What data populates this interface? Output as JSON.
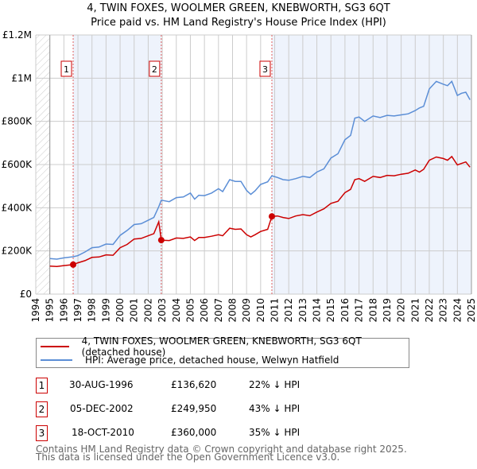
{
  "title_line1": "4, TWIN FOXES, WOOLMER GREEN, KNEBWORTH, SG3 6QT",
  "title_line2": "Price paid vs. HM Land Registry's House Price Index (HPI)",
  "colors": {
    "property": "#cc0000",
    "hpi": "#5b8ed6",
    "shade": "#eef3fc",
    "grid": "#cccccc"
  },
  "chart_data": {
    "type": "line",
    "title": "Price paid vs. HM Land Registry's House Price Index (HPI)",
    "xlim": [
      1994,
      2025
    ],
    "ylim": [
      0,
      1200000
    ],
    "x_ticks": [
      "1994",
      "1995",
      "1996",
      "1997",
      "1998",
      "1999",
      "2000",
      "2001",
      "2002",
      "2003",
      "2004",
      "2005",
      "2006",
      "2007",
      "2008",
      "2009",
      "2010",
      "2011",
      "2012",
      "2013",
      "2014",
      "2015",
      "2016",
      "2017",
      "2018",
      "2019",
      "2020",
      "2021",
      "2022",
      "2023",
      "2024",
      "2025"
    ],
    "y_ticks": [
      {
        "value": 0,
        "label": "£0"
      },
      {
        "value": 200000,
        "label": "£200K"
      },
      {
        "value": 400000,
        "label": "£400K"
      },
      {
        "value": 600000,
        "label": "£600K"
      },
      {
        "value": 800000,
        "label": "£800K"
      },
      {
        "value": 1000000,
        "label": "£1M"
      },
      {
        "value": 1200000,
        "label": "£1.2M"
      }
    ],
    "grid": true,
    "series": [
      {
        "name": "4, TWIN FOXES, WOOLMER GREEN, KNEBWORTH, SG3 6QT (detached house)",
        "color": "#cc0000",
        "x": [
          1995,
          1995.5,
          1996,
          1996.66,
          1997,
          1997.5,
          1998,
          1998.5,
          1999,
          1999.5,
          2000,
          2000.5,
          2001,
          2001.5,
          2002,
          2002.4,
          2002.75,
          2002.93,
          2003.5,
          2004,
          2004.5,
          2005,
          2005.3,
          2005.6,
          2006,
          2006.5,
          2007,
          2007.3,
          2007.8,
          2008.2,
          2008.6,
          2009,
          2009.3,
          2009.6,
          2010,
          2010.5,
          2010.8,
          2011.2,
          2011.6,
          2012,
          2012.5,
          2013,
          2013.5,
          2014,
          2014.5,
          2015,
          2015.5,
          2016,
          2016.4,
          2016.7,
          2017,
          2017.4,
          2018,
          2018.5,
          2019,
          2019.5,
          2020,
          2020.5,
          2021,
          2021.3,
          2021.6,
          2022,
          2022.5,
          2023,
          2023.3,
          2023.6,
          2024,
          2024.3,
          2024.6,
          2024.9
        ],
        "y": [
          130000,
          128000,
          132000,
          136620,
          145000,
          155000,
          170000,
          172000,
          182000,
          180000,
          215000,
          230000,
          255000,
          258000,
          270000,
          280000,
          335000,
          249950,
          248000,
          260000,
          258000,
          265000,
          248000,
          262000,
          262000,
          268000,
          275000,
          270000,
          305000,
          300000,
          302000,
          275000,
          265000,
          275000,
          290000,
          300000,
          360000,
          362000,
          355000,
          350000,
          362000,
          368000,
          363000,
          380000,
          395000,
          420000,
          430000,
          470000,
          485000,
          530000,
          535000,
          522000,
          545000,
          540000,
          550000,
          548000,
          555000,
          560000,
          575000,
          565000,
          578000,
          620000,
          635000,
          628000,
          620000,
          637000,
          598000,
          605000,
          612000,
          588000
        ]
      },
      {
        "name": "HPI: Average price, detached house, Welwyn Hatfield",
        "color": "#5b8ed6",
        "x": [
          1995,
          1995.5,
          1996,
          1996.66,
          1997,
          1997.5,
          1998,
          1998.5,
          1999,
          1999.5,
          2000,
          2000.5,
          2001,
          2001.5,
          2002,
          2002.4,
          2002.75,
          2002.93,
          2003.5,
          2004,
          2004.5,
          2005,
          2005.3,
          2005.6,
          2006,
          2006.5,
          2007,
          2007.3,
          2007.8,
          2008.2,
          2008.6,
          2009,
          2009.3,
          2009.6,
          2010,
          2010.5,
          2010.8,
          2011.2,
          2011.6,
          2012,
          2012.5,
          2013,
          2013.5,
          2014,
          2014.5,
          2015,
          2015.5,
          2016,
          2016.4,
          2016.7,
          2017,
          2017.4,
          2018,
          2018.5,
          2019,
          2019.5,
          2020,
          2020.5,
          2021,
          2021.3,
          2021.6,
          2022,
          2022.5,
          2023,
          2023.3,
          2023.6,
          2024,
          2024.3,
          2024.6,
          2024.9
        ],
        "y": [
          165000,
          162000,
          168000,
          173000,
          178000,
          195000,
          215000,
          218000,
          232000,
          230000,
          272000,
          295000,
          322000,
          326000,
          342000,
          355000,
          405000,
          435000,
          428000,
          447000,
          450000,
          468000,
          440000,
          458000,
          456000,
          468000,
          488000,
          475000,
          530000,
          522000,
          522000,
          480000,
          462000,
          478000,
          508000,
          520000,
          548000,
          540000,
          530000,
          527000,
          535000,
          545000,
          540000,
          565000,
          580000,
          630000,
          650000,
          715000,
          735000,
          815000,
          820000,
          800000,
          825000,
          818000,
          828000,
          825000,
          830000,
          835000,
          850000,
          862000,
          870000,
          950000,
          985000,
          972000,
          965000,
          985000,
          920000,
          930000,
          935000,
          900000
        ]
      }
    ],
    "sales": [
      {
        "id": "1",
        "x": 1996.66,
        "value": 136620
      },
      {
        "id": "2",
        "x": 2002.93,
        "value": 249950
      },
      {
        "id": "3",
        "x": 2010.8,
        "value": 360000
      }
    ],
    "legend_position": "below"
  },
  "legend": {
    "property": "4, TWIN FOXES, WOOLMER GREEN, KNEBWORTH, SG3 6QT (detached house)",
    "hpi": "HPI: Average price, detached house, Welwyn Hatfield"
  },
  "transactions": [
    {
      "id": "1",
      "date": "30-AUG-1996",
      "price": "£136,620",
      "hpi": "22% ↓ HPI"
    },
    {
      "id": "2",
      "date": "05-DEC-2002",
      "price": "£249,950",
      "hpi": "43% ↓ HPI"
    },
    {
      "id": "3",
      "date": "18-OCT-2010",
      "price": "£360,000",
      "hpi": "35% ↓ HPI"
    }
  ],
  "footer": {
    "line1": "Contains HM Land Registry data © Crown copyright and database right 2025.",
    "line2": "This data is licensed under the Open Government Licence v3.0."
  }
}
